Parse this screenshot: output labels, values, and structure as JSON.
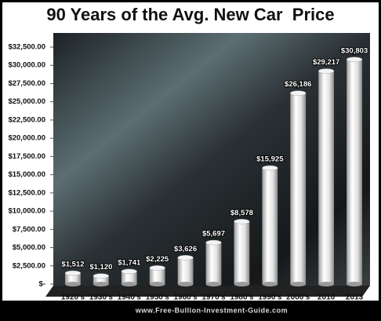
{
  "chart_data": {
    "type": "bar",
    "title": "90 Years of the Avg. New Car  Price",
    "categories": [
      "1920's",
      "1930's",
      "1940's",
      "1950's",
      "1960's",
      "1970's",
      "1980's",
      "1990's",
      "2000's",
      "2010",
      "2013"
    ],
    "values": [
      1512,
      1120,
      1741,
      2225,
      3626,
      5697,
      8578,
      15925,
      26186,
      29217,
      30803
    ],
    "value_labels": [
      "$1,512",
      "$1,120",
      "$1,741",
      "$2,225",
      "$3,626",
      "$5,697",
      "$8,578",
      "$15,925",
      "$26,186",
      "$29,217",
      "$30,803"
    ],
    "color": "#e8e8e8",
    "ylim": [
      0,
      32500
    ],
    "yticks": [
      {
        "value": 0,
        "label": "$-"
      },
      {
        "value": 2500,
        "label": "$2,500.00"
      },
      {
        "value": 5000,
        "label": "$5,000.00"
      },
      {
        "value": 7500,
        "label": "$7,500.00"
      },
      {
        "value": 10000,
        "label": "$10,000.00"
      },
      {
        "value": 12500,
        "label": "$12,500.00"
      },
      {
        "value": 15000,
        "label": "$15,000.00"
      },
      {
        "value": 17500,
        "label": "$17,500.00"
      },
      {
        "value": 20000,
        "label": "$20,000.00"
      },
      {
        "value": 22500,
        "label": "$22,500.00"
      },
      {
        "value": 25000,
        "label": "$25,000.00"
      },
      {
        "value": 27500,
        "label": "$27,500.00"
      },
      {
        "value": 30000,
        "label": "$30,000.00"
      },
      {
        "value": 32500,
        "label": "$32,500.00"
      }
    ],
    "source": "www.Free-Bullion-Investment-Guide.com"
  }
}
